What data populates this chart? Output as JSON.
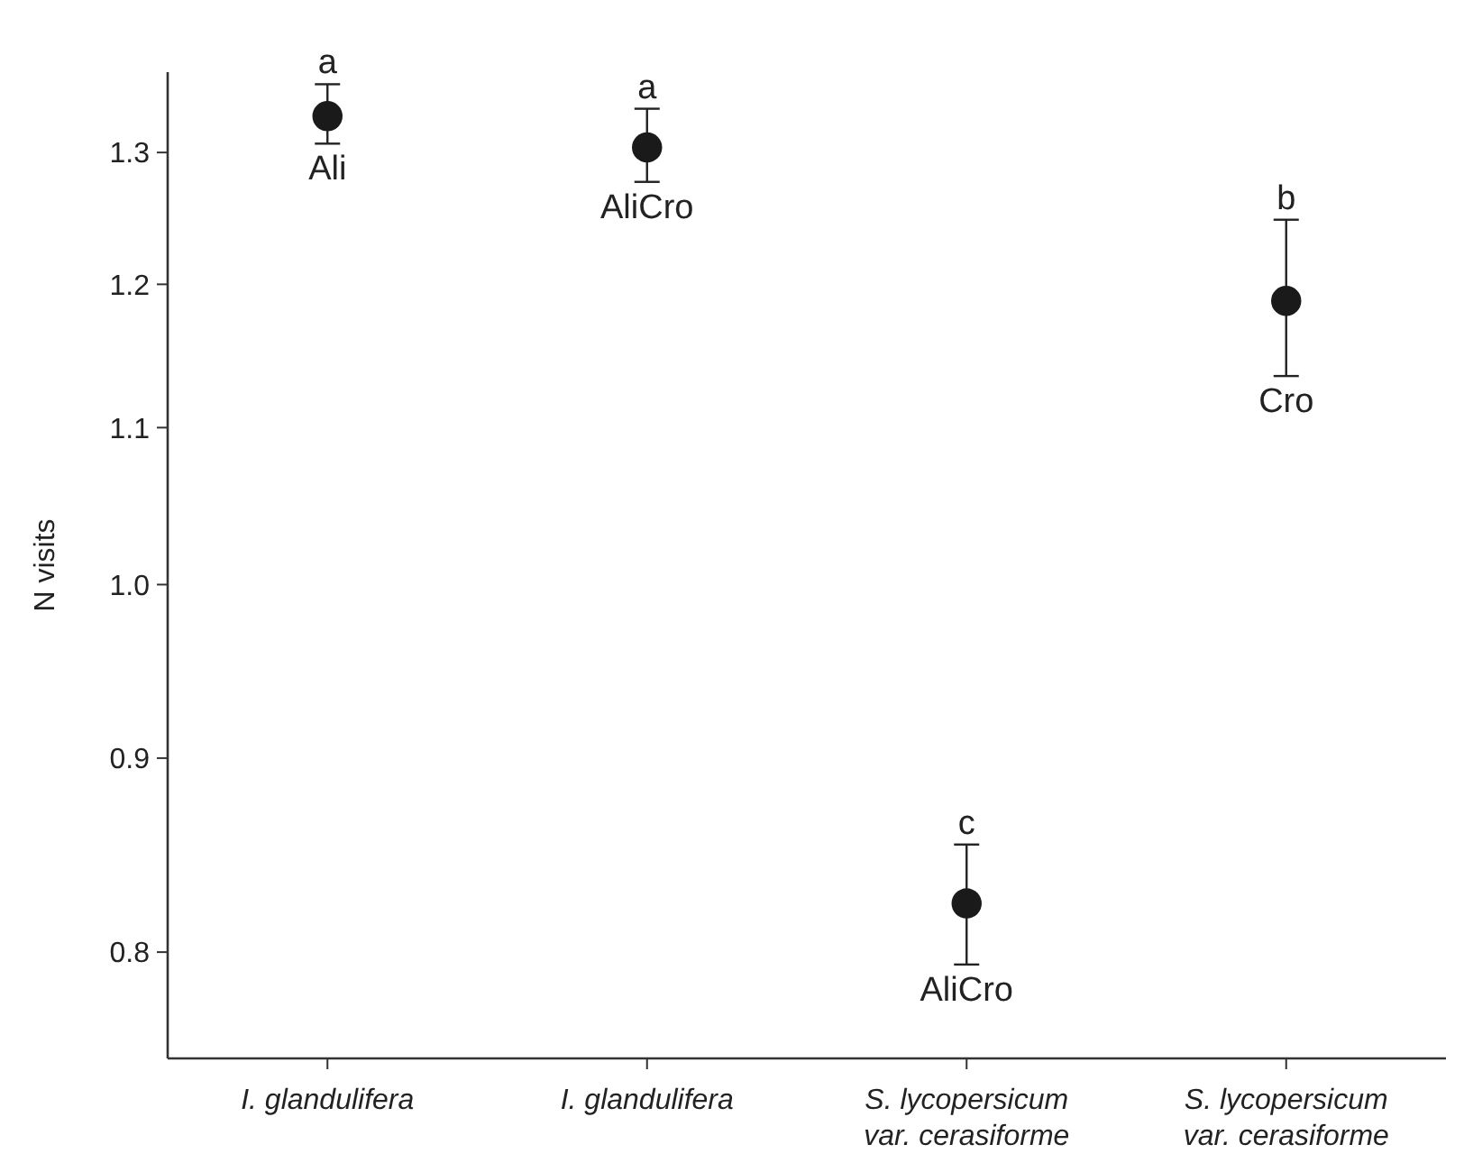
{
  "chart_data": {
    "type": "scatter",
    "ylabel": "N visits",
    "log": "y",
    "marker": "circle",
    "grid": false,
    "categories": [
      "I. glandulifera",
      "I. glandulifera",
      "S. lycopersicum\nvar. cerasiforme",
      "S. lycopersicum\nvar. cerasiforme"
    ],
    "series": [
      {
        "color": "#1a1a1a",
        "values": [
          1.329,
          1.304,
          0.824,
          1.188
        ],
        "errors": [
          [
            1.307,
            1.355
          ],
          [
            1.277,
            1.335
          ],
          [
            0.794,
            0.854
          ],
          [
            1.135,
            1.248
          ]
        ]
      }
    ],
    "ylim": [
      0.75,
      1.365
    ],
    "yticks": [
      {
        "value": 0.8,
        "label": "0.8"
      },
      {
        "value": 0.9,
        "label": "0.9"
      },
      {
        "value": 1.0,
        "label": "1.0"
      },
      {
        "value": 1.1,
        "label": "1.1"
      },
      {
        "value": 1.2,
        "label": "1.2"
      },
      {
        "value": 1.3,
        "label": "1.3"
      }
    ],
    "annotations": [
      "a",
      "Ali",
      "a",
      "AliCro",
      "c",
      "AliCro",
      "b",
      "Cro"
    ]
  }
}
